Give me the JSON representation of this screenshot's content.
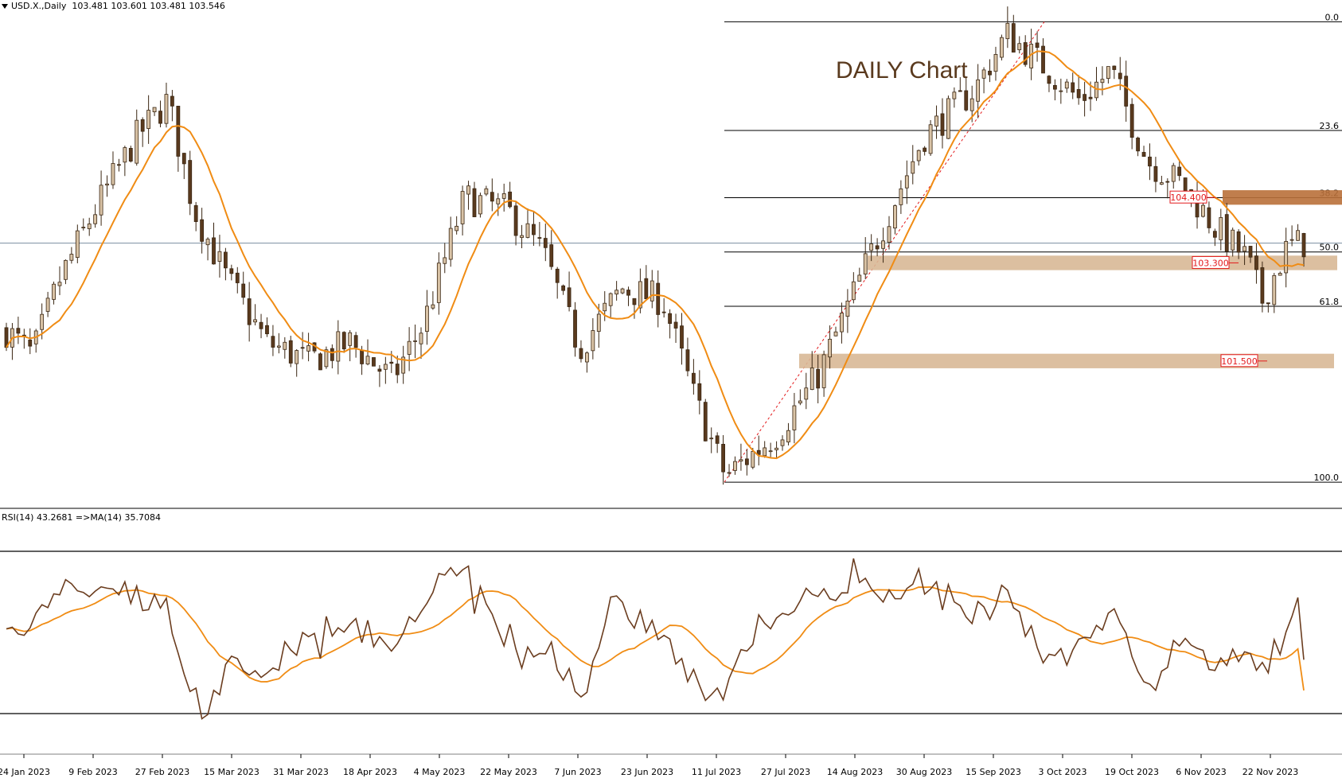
{
  "header": {
    "symbol": "USD.X.,Daily",
    "ohlc": "103.481 103.601 103.481 103.546"
  },
  "chart_title": "DAILY Chart",
  "rsi_header": "RSI(14) 43.2681  =>MA(14) 35.7084",
  "colors": {
    "up_candle": "#d9c3a6",
    "down_candle": "#5a3a1e",
    "ma_line": "#f08c14",
    "rsi_line": "#6b3d1f",
    "zone": "#d8b896",
    "zone_dark": "#b9703a",
    "level_label": "#e31a1c",
    "current_price_line": "#7a8ea0"
  },
  "chart_data": [
    {
      "type": "candlestick",
      "series_name": "USD.X.,Daily",
      "ylim": [
        99.22,
        107.56
      ],
      "x_tick_labels": [
        "24 Jan 2023",
        "9 Feb 2023",
        "27 Feb 2023",
        "15 Mar 2023",
        "31 Mar 2023",
        "18 Apr 2023",
        "4 May 2023",
        "22 May 2023",
        "7 Jun 2023",
        "23 Jun 2023",
        "11 Jul 2023",
        "27 Jul 2023",
        "14 Aug 2023",
        "30 Aug 2023",
        "15 Sep 2023",
        "3 Oct 2023",
        "19 Oct 2023",
        "6 Nov 2023",
        "22 Nov 2023"
      ],
      "current_price": 103.546,
      "fibonacci": {
        "low": 99.6,
        "high": 107.2,
        "levels": [
          {
            "label": "0.0",
            "ratio": 0.0
          },
          {
            "label": "23.6",
            "ratio": 0.236
          },
          {
            "label": "38.2",
            "ratio": 0.382
          },
          {
            "label": "50.0",
            "ratio": 0.5
          },
          {
            "label": "61.8",
            "ratio": 0.618
          },
          {
            "label": "100.0",
            "ratio": 1.0
          }
        ]
      },
      "zones": [
        {
          "label": "104.400",
          "from": 104.18,
          "to": 104.42
        },
        {
          "label": "103.300",
          "from": 103.1,
          "to": 103.34
        },
        {
          "label": "101.500",
          "from": 101.48,
          "to": 101.72
        }
      ],
      "annotations": [
        "104.400",
        "103.300",
        "101.500"
      ]
    },
    {
      "type": "line",
      "indicator": "RSI(14)",
      "ylim": [
        20,
        80
      ],
      "levels": [
        70,
        30
      ],
      "value": 43.2681,
      "ma_value": 35.7084
    }
  ]
}
